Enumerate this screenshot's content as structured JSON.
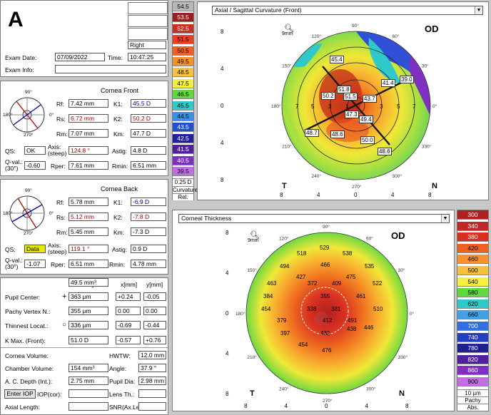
{
  "figure_label": "A",
  "patient": {
    "eye": "Right",
    "exam_date_label": "Exam Date:",
    "exam_date": "07/09/2022",
    "time_label": "Time:",
    "time": "10:47:25",
    "exam_info_label": "Exam Info:",
    "exam_info": ""
  },
  "front": {
    "title": "Cornea Front",
    "rf_label": "Rf:",
    "rf": "7.42 mm",
    "k1_label": "K1:",
    "k1": "45.5 D",
    "rs_label": "Rs:",
    "rs": "6.72 mm",
    "k2_label": "K2:",
    "k2": "50.2 D",
    "rm_label": "Rm:",
    "rm": "7.07 mm",
    "km_label": "Km:",
    "km": "47.7 D",
    "qs_label": "QS:",
    "qs": "OK",
    "axis_label": "Axis:",
    "axis_sub": "(steep)",
    "axis": "124.8 °",
    "astig_label": "Astig:",
    "astig": "4.8 D",
    "qval_label": "Q-val.:",
    "qval_sub": "(30°)",
    "qval": "-0.60",
    "rper_label": "Rper:",
    "rper": "7.61 mm",
    "rmin_label": "Rmin:",
    "rmin": "6.51 mm",
    "angle_labels": [
      "90°",
      "180°",
      "270°",
      "0°"
    ]
  },
  "back": {
    "title": "Cornea Back",
    "rf_label": "Rf:",
    "rf": "5.78 mm",
    "k1_label": "K1:",
    "k1": "-6.9 D",
    "rs_label": "Rs:",
    "rs": "5.12 mm",
    "k2_label": "K2:",
    "k2": "-7.8 D",
    "rm_label": "Rm:",
    "rm": "5.45 mm",
    "km_label": "Km:",
    "km": "-7.3 D",
    "qs_label": "QS:",
    "qs": "Data",
    "axis_label": "Axis:",
    "axis_sub": "(steep)",
    "axis": "119.1 °",
    "astig_label": "Astig:",
    "astig": "0.9 D",
    "qval_label": "Q-val.:",
    "qval_sub": "(30°)",
    "qval": "-1.07",
    "rper_label": "Rper:",
    "rper": "6.51 mm",
    "rmin_label": "Rmin:",
    "rmin": "4.78 mm",
    "angle_labels": [
      "90°",
      "180°",
      "270°",
      "0°"
    ]
  },
  "pachy": {
    "col_pachy": "Pachy:",
    "col_x": "x[mm]",
    "col_y": "y[mm]",
    "rows": [
      {
        "label": "Pupil Center:",
        "value": "363 µm",
        "x": "+0.24",
        "y": "-0.05"
      },
      {
        "label": "Pachy Vertex N.:",
        "value": "355 µm",
        "x": "0.00",
        "y": "0.00"
      },
      {
        "label": "Thinnest Locat.:",
        "value": "336 µm",
        "x": "-0.69",
        "y": "-0.44"
      },
      {
        "label": "K Max. (Front):",
        "value": "51.0 D",
        "x": "-0.57",
        "y": "+0.76"
      }
    ]
  },
  "volume": {
    "cornea_volume_label": "Cornea Volume:",
    "cornea_volume": "49.5 mm³",
    "hwtw_label": "HWTW:",
    "hwtw": "12.0 mm",
    "chamber_volume_label": "Chamber Volume:",
    "chamber_volume": "154 mm³",
    "angle_label": "Angle:",
    "angle": "37.9 °",
    "acd_label": "A. C. Depth (Int.):",
    "acd": "2.75 mm",
    "pupil_dia_label": "Pupil Dia:",
    "pupil_dia": "2.98 mm",
    "enter_iop": "Enter IOP",
    "iop_cor_label": "IOP(cor):",
    "iop_cor": "",
    "lens_th_label": "Lens Th.:",
    "lens_th": "",
    "axial_length_label": "Axial Length:",
    "axial_length": "",
    "snr_label": "SNR(Ax.Le",
    "snr": ""
  },
  "curvature_scale": {
    "values": [
      "54.5",
      "53.5",
      "52.5",
      "51.5",
      "50.5",
      "49.5",
      "48.5",
      "47.5",
      "46.5",
      "45.5",
      "44.5",
      "43.5",
      "42.5",
      "41.5",
      "40.5",
      "39.5"
    ],
    "colors": [
      "#b8b8b8",
      "#9a2020",
      "#c83020",
      "#e84020",
      "#f06020",
      "#f89028",
      "#f8c040",
      "#f0f040",
      "#60d840",
      "#30c8c8",
      "#3890e8",
      "#2050d0",
      "#2020a0",
      "#5020a0",
      "#8030c0",
      "#c070e0"
    ],
    "step": "0.25 D",
    "type": "Curvature",
    "mode": "Rel."
  },
  "thickness_scale": {
    "values": [
      "300",
      "340",
      "380",
      "420",
      "460",
      "500",
      "540",
      "580",
      "620",
      "660",
      "700",
      "740",
      "780",
      "820",
      "860",
      "900"
    ],
    "colors": [
      "#b02020",
      "#c02828",
      "#d83020",
      "#f06020",
      "#f89030",
      "#f8c040",
      "#f8f040",
      "#60d840",
      "#30c8c8",
      "#40a0e8",
      "#3070e0",
      "#2040c0",
      "#202090",
      "#5020a0",
      "#8030c0",
      "#c070e0"
    ],
    "step": "10 µm",
    "type": "Pachy",
    "mode": "Abs."
  },
  "map_top": {
    "dropdown": "Axial / Sagittal Curvature (Front)",
    "eye_label": "OD",
    "zoom_label": "9mm",
    "temporal": "T",
    "nasal": "N",
    "x_ticks": [
      "8",
      "4",
      "0",
      "4",
      "8"
    ],
    "y_ticks": [
      "8",
      "4",
      "0",
      "4",
      "8"
    ],
    "angle_labels": [
      "90°",
      "60°",
      "30°",
      "0°",
      "330°",
      "300°",
      "270°",
      "240°",
      "210°",
      "180°",
      "150°",
      "120°"
    ],
    "ring_labels": [
      "7",
      "5",
      "3",
      "1",
      "3",
      "5",
      "7"
    ],
    "values": [
      "45.4",
      "51.8",
      "50.2",
      "51.5",
      "43.7",
      "41.4",
      "39.0",
      "47.3",
      "49.4",
      "48.7",
      "48.6",
      "50.0",
      "48.6"
    ]
  },
  "map_bottom": {
    "dropdown": "Corneal Thickness",
    "eye_label": "OD",
    "zoom_label": "9mm",
    "temporal": "T",
    "nasal": "N",
    "x_ticks": [
      "8",
      "4",
      "0",
      "4",
      "8"
    ],
    "y_ticks": [
      "8",
      "4",
      "0",
      "4",
      "8"
    ],
    "angle_labels": [
      "90°",
      "60°",
      "30°",
      "0°",
      "330°",
      "300°",
      "270°",
      "240°",
      "210°",
      "180°",
      "150°",
      "120°"
    ],
    "values": [
      "529",
      "518",
      "538",
      "494",
      "466",
      "535",
      "427",
      "475",
      "463",
      "372",
      "409",
      "522",
      "384",
      "355",
      "461",
      "454",
      "338",
      "381",
      "510",
      "379",
      "412",
      "491",
      "446",
      "397",
      "432",
      "438",
      "454",
      "476"
    ]
  }
}
